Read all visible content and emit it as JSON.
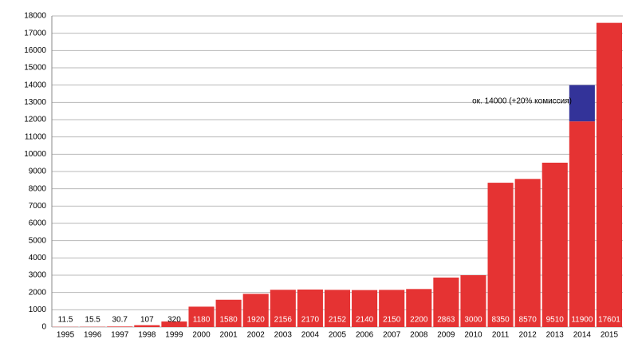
{
  "chart_data": {
    "type": "bar",
    "categories": [
      "1995",
      "1996",
      "1997",
      "1998",
      "1999",
      "2000",
      "2001",
      "2002",
      "2003",
      "2004",
      "2005",
      "2006",
      "2007",
      "2008",
      "2009",
      "2010",
      "2011",
      "2012",
      "2013",
      "2014",
      "2015"
    ],
    "series": [
      {
        "color": "#e53333",
        "values": [
          11.5,
          15.5,
          30.7,
          107,
          320,
          1180,
          1580,
          1920,
          2156,
          2170,
          2152,
          2140,
          2150,
          2200,
          2863,
          3000,
          8350,
          8570,
          9510,
          11900,
          17601
        ]
      },
      {
        "color": "#333399",
        "values": [
          null,
          null,
          null,
          null,
          null,
          null,
          null,
          null,
          null,
          null,
          null,
          null,
          null,
          null,
          null,
          null,
          null,
          null,
          null,
          2100,
          null
        ]
      }
    ],
    "annotation": "ок. 14000 (+20% комиссия)",
    "ylim": [
      0,
      18000
    ],
    "yticks": [
      0,
      1000,
      2000,
      3000,
      4000,
      5000,
      6000,
      7000,
      8000,
      9000,
      10000,
      11000,
      12000,
      13000,
      14000,
      15000,
      16000,
      17000,
      18000
    ],
    "grid": true
  }
}
